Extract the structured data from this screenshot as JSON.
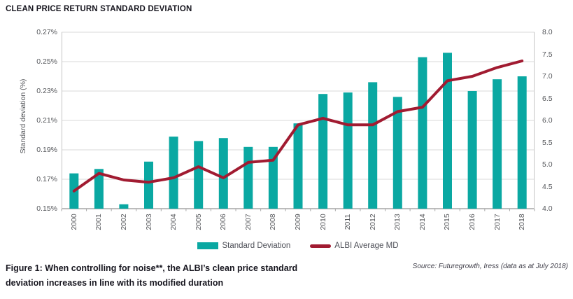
{
  "title": "CLEAN PRICE RETURN STANDARD DEVIATION",
  "legend": {
    "bar_label": "Standard Deviation",
    "line_label": "ALBI Average MD"
  },
  "caption": {
    "line1": "Figure 1: When controlling for noise**, the ALBI’s clean price standard",
    "line2": "deviation increases in line with its modified duration"
  },
  "source": "Source: Futuregrowth, Iress (data as at July 2018)",
  "colors": {
    "bar": "#0aa8a2",
    "line": "#a11b31",
    "grid": "#d9d9d9",
    "border": "#c4c4c4",
    "axis_line": "#a6a6a6",
    "axis_text": "#54565a",
    "dark_text": "#17161f"
  },
  "chart_data": {
    "type": "bar",
    "subtype": "combo-bar-line",
    "title": "CLEAN PRICE RETURN STANDARD DEVIATION",
    "categories": [
      "2000",
      "2001",
      "2002",
      "2003",
      "2004",
      "2005",
      "2006",
      "2007",
      "2008",
      "2009",
      "2010",
      "2011",
      "2012",
      "2013",
      "2014",
      "2015",
      "2016",
      "2017",
      "2018"
    ],
    "series": [
      {
        "name": "Standard Deviation",
        "type": "bar",
        "axis": "left",
        "unit": "%",
        "values": [
          0.174,
          0.177,
          0.153,
          0.182,
          0.199,
          0.196,
          0.198,
          0.192,
          0.192,
          0.208,
          0.228,
          0.229,
          0.236,
          0.226,
          0.253,
          0.256,
          0.23,
          0.238,
          0.24
        ]
      },
      {
        "name": "ALBI Average MD",
        "type": "line",
        "axis": "right",
        "unit": "years",
        "values": [
          4.4,
          4.8,
          4.65,
          4.6,
          4.7,
          4.95,
          4.7,
          5.05,
          5.1,
          5.9,
          6.05,
          5.9,
          5.9,
          6.2,
          6.3,
          6.9,
          7.0,
          7.2,
          7.35
        ]
      }
    ],
    "left_axis": {
      "label": "Standard deviation (%)",
      "min": 0.15,
      "max": 0.27,
      "step": 0.02,
      "ticks": [
        "0.27%",
        "0.25%",
        "0.23%",
        "0.21%",
        "0.19%",
        "0.17%",
        "0.15%"
      ]
    },
    "right_axis": {
      "label": "",
      "min": 4.0,
      "max": 8.0,
      "step": 0.5,
      "ticks": [
        "8.0",
        "7.5",
        "7.0",
        "6.5",
        "6.0",
        "5.5",
        "5.0",
        "4.5",
        "4.0"
      ]
    },
    "grid": "horizontal",
    "legend_position": "bottom"
  }
}
